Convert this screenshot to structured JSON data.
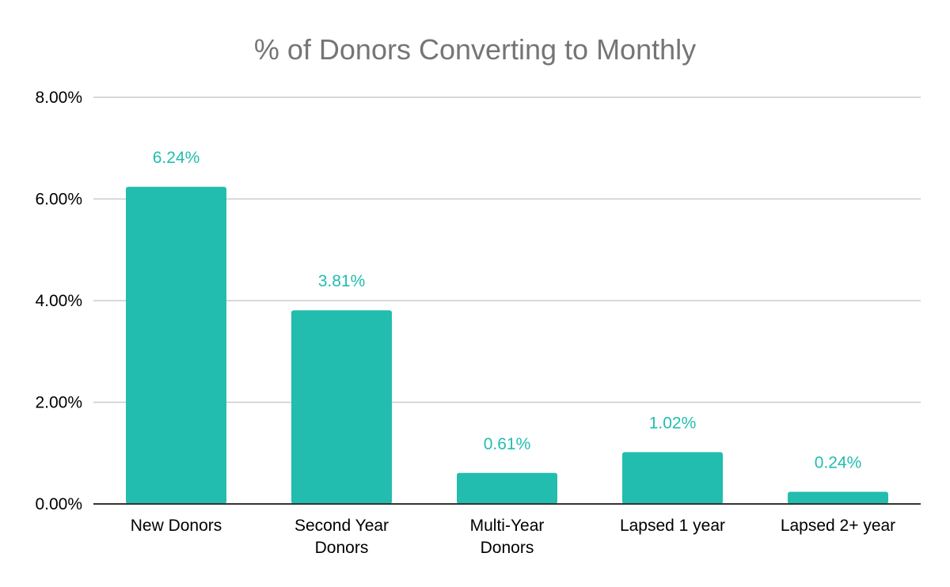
{
  "chart_data": {
    "type": "bar",
    "title": "% of Donors Converting to Monthly",
    "xlabel": "",
    "ylabel": "",
    "categories": [
      [
        "New Donors"
      ],
      [
        "Second Year",
        "Donors"
      ],
      [
        "Multi-Year",
        "Donors"
      ],
      [
        "Lapsed 1 year"
      ],
      [
        "Lapsed 2+ year"
      ]
    ],
    "values": [
      6.24,
      3.81,
      0.61,
      1.02,
      0.24
    ],
    "data_labels": [
      "6.24%",
      "3.81%",
      "0.61%",
      "1.02%",
      "0.24%"
    ],
    "ylim": [
      0,
      8
    ],
    "y_ticks": [
      0,
      2,
      4,
      6,
      8
    ],
    "y_tick_labels": [
      "0.00%",
      "2.00%",
      "4.00%",
      "6.00%",
      "8.00%"
    ],
    "grid": true,
    "legend": "none",
    "colors": {
      "bar": "#22bdaf",
      "data_label": "#22bdaf",
      "title": "#757575",
      "gridline": "#cccccc",
      "axis": "#333333",
      "text": "#000000"
    }
  }
}
